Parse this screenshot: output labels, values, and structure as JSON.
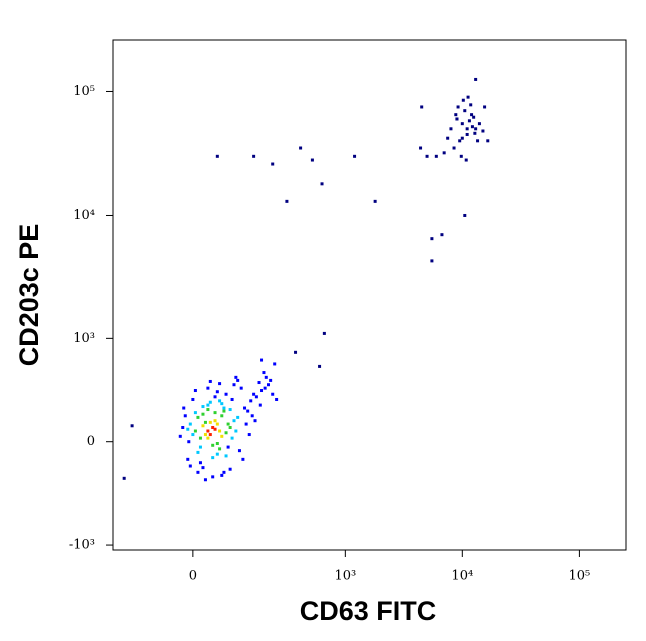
{
  "chart_data": {
    "type": "scatter",
    "x_label": "CD63 FITC",
    "y_label": "CD203c PE",
    "xscale": "biexponential",
    "yscale": "biexponential",
    "xlim": [
      -230,
      250000
    ],
    "ylim": [
      -1100,
      260000
    ],
    "xticks": [
      0,
      {
        "value": 1000,
        "label": "10³"
      },
      {
        "value": 10000,
        "label": "10⁴"
      },
      {
        "value": 100000,
        "label": "10⁵"
      }
    ],
    "yticks": [
      {
        "value": -1000,
        "label": "-10³"
      },
      0,
      {
        "value": 1000,
        "label": "10³"
      },
      {
        "value": 10000,
        "label": "10⁴"
      },
      {
        "value": 100000,
        "label": "10⁵"
      }
    ],
    "series": [
      {
        "color": "#000080",
        "x": [
          8000,
          9000,
          10000,
          11000,
          12000,
          13000,
          9500,
          10500,
          11500,
          12500,
          8500,
          14000,
          15000,
          7500,
          10200,
          11800,
          9800,
          12200,
          13500,
          8800,
          16500,
          7000,
          10800,
          11200,
          9200,
          12800,
          5000,
          4500,
          4400,
          6000,
          15500,
          13000,
          11000,
          9000,
          10000,
          150,
          50,
          230,
          310,
          410,
          520,
          630,
          1200,
          1800,
          660,
          5500,
          5500,
          6700,
          10500,
          600,
          -150,
          -180,
          370
        ],
        "values": [
          50000,
          60000,
          55000,
          45000,
          65000,
          50000,
          40000,
          70000,
          58000,
          62000,
          35000,
          55000,
          48000,
          42000,
          85000,
          78000,
          30000,
          52000,
          40000,
          65000,
          40000,
          32000,
          28000,
          90000,
          75000,
          46000,
          30000,
          75000,
          35000,
          30000,
          75000,
          125000,
          50000,
          60000,
          42000,
          30000,
          30000,
          26000,
          13000,
          35000,
          28000,
          18000,
          30000,
          13000,
          1100,
          4300,
          6500,
          7000,
          10000,
          570,
          90,
          -220,
          760
        ]
      },
      {
        "color": "#0000ff",
        "x": [
          -20,
          -15,
          -25,
          120,
          140,
          150,
          110,
          160,
          -10,
          130,
          170,
          180,
          100,
          90,
          200,
          -5,
          10,
          60,
          40,
          20,
          80,
          70,
          50,
          30,
          210,
          230,
          250,
          190,
          0,
          15,
          45,
          85,
          105,
          125,
          145,
          -18,
          75,
          35,
          55,
          95,
          115,
          135,
          155,
          175,
          195,
          65,
          25,
          5,
          -8,
          220,
          180,
          240
        ],
        "values": [
          80,
          150,
          30,
          200,
          250,
          300,
          350,
          280,
          -100,
          180,
          400,
          330,
          420,
          380,
          450,
          -140,
          -180,
          -200,
          -210,
          -150,
          -160,
          300,
          320,
          350,
          380,
          300,
          260,
          500,
          260,
          -120,
          280,
          260,
          -50,
          100,
          150,
          200,
          -30,
          410,
          390,
          450,
          -100,
          40,
          120,
          220,
          350,
          -180,
          -230,
          330,
          0,
          420,
          650,
          600
        ]
      },
      {
        "color": "#00c8ff",
        "x": [
          -5,
          0,
          90,
          95,
          30,
          50,
          10,
          80,
          60,
          -10,
          100,
          20,
          70,
          40,
          5,
          85,
          55,
          15,
          65,
          35
        ],
        "values": [
          100,
          40,
          120,
          60,
          220,
          -70,
          -60,
          190,
          230,
          70,
          140,
          210,
          -80,
          -90,
          170,
          20,
          250,
          -30,
          200,
          240
        ]
      },
      {
        "color": "#30d030",
        "x": [
          10,
          60,
          70,
          5,
          40,
          20,
          75,
          50,
          15,
          65,
          30,
          55,
          45,
          80,
          25
        ],
        "values": [
          140,
          150,
          50,
          60,
          -20,
          160,
          100,
          -10,
          20,
          180,
          190,
          -40,
          170,
          80,
          110
        ]
      },
      {
        "color": "#f0e000",
        "x": [
          20,
          50,
          30,
          55,
          25,
          45,
          60,
          35
        ],
        "values": [
          90,
          100,
          20,
          60,
          40,
          120,
          30,
          110
        ]
      },
      {
        "color": "#ff2000",
        "x": [
          30,
          40,
          35,
          45
        ],
        "values": [
          60,
          80,
          40,
          70
        ]
      }
    ]
  }
}
